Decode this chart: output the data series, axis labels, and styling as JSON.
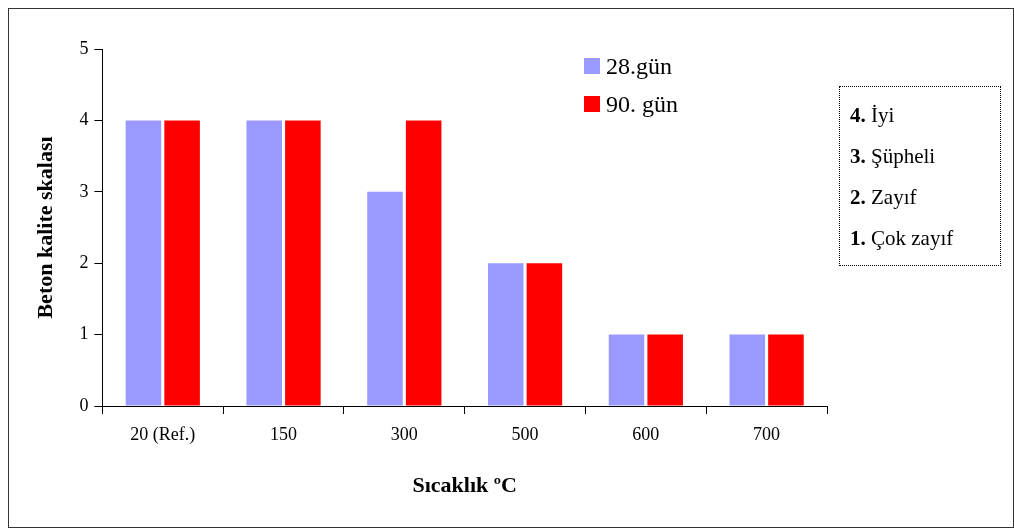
{
  "chart_data": {
    "type": "bar",
    "xlabel": "Sıcaklık ºC",
    "ylabel": "Beton kalite skalası",
    "categories": [
      "20 (Ref.)",
      "150",
      "300",
      "500",
      "600",
      "700"
    ],
    "series": [
      {
        "name": "28.gün",
        "color": "#9999ff",
        "values": [
          4,
          4,
          3,
          2,
          1,
          1
        ]
      },
      {
        "name": "90. gün",
        "color": "#ff0000",
        "values": [
          4,
          4,
          4,
          2,
          1,
          1
        ]
      }
    ],
    "ylim": [
      0,
      5
    ],
    "yticks": [
      0,
      1,
      2,
      3,
      4,
      5
    ],
    "grid": false,
    "legend": "top right",
    "annotations": [
      "4. İyi",
      "3. Şüpheli",
      "2. Zayıf",
      "1. Çok zayıf"
    ]
  }
}
